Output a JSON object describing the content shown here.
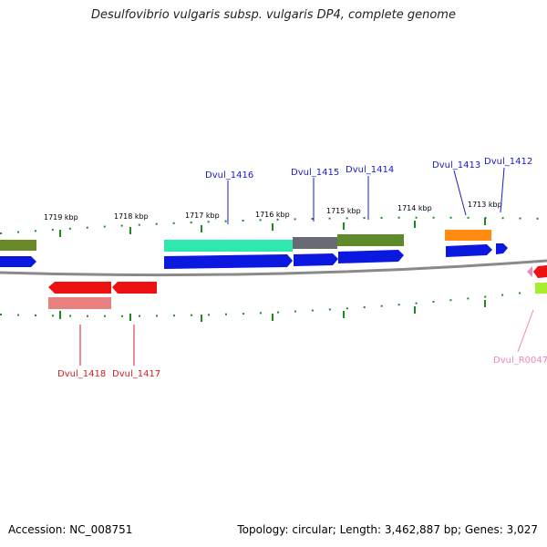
{
  "title": "Desulfovibrio vulgaris subsp. vulgaris DP4, complete genome",
  "footer": {
    "accession": "Accession: NC_008751",
    "summary": "Topology: circular; Length: 3,462,887 bp; Genes: 3,027"
  },
  "scale_labels": [
    "1719 kbp",
    "1718 kbp",
    "1717 kbp",
    "1716 kbp",
    "1715 kbp",
    "1714 kbp",
    "1713 kbp"
  ],
  "gene_labels": {
    "top": [
      "Dvul_1416",
      "Dvul_1415",
      "Dvul_1414",
      "Dvul_1413",
      "Dvul_1412"
    ],
    "bottom": [
      "Dvul_1418",
      "Dvul_1417",
      "Dvul_R0047"
    ]
  },
  "colors": {
    "label_forward": "#1a1acc",
    "label_reverse": "#d42020",
    "label_rna": "#ee88bb",
    "backbone": "#7f7f7f",
    "tick": "#1f8a1f",
    "cds": "#0a18e0",
    "reverse_cds": "#ee1111"
  }
}
